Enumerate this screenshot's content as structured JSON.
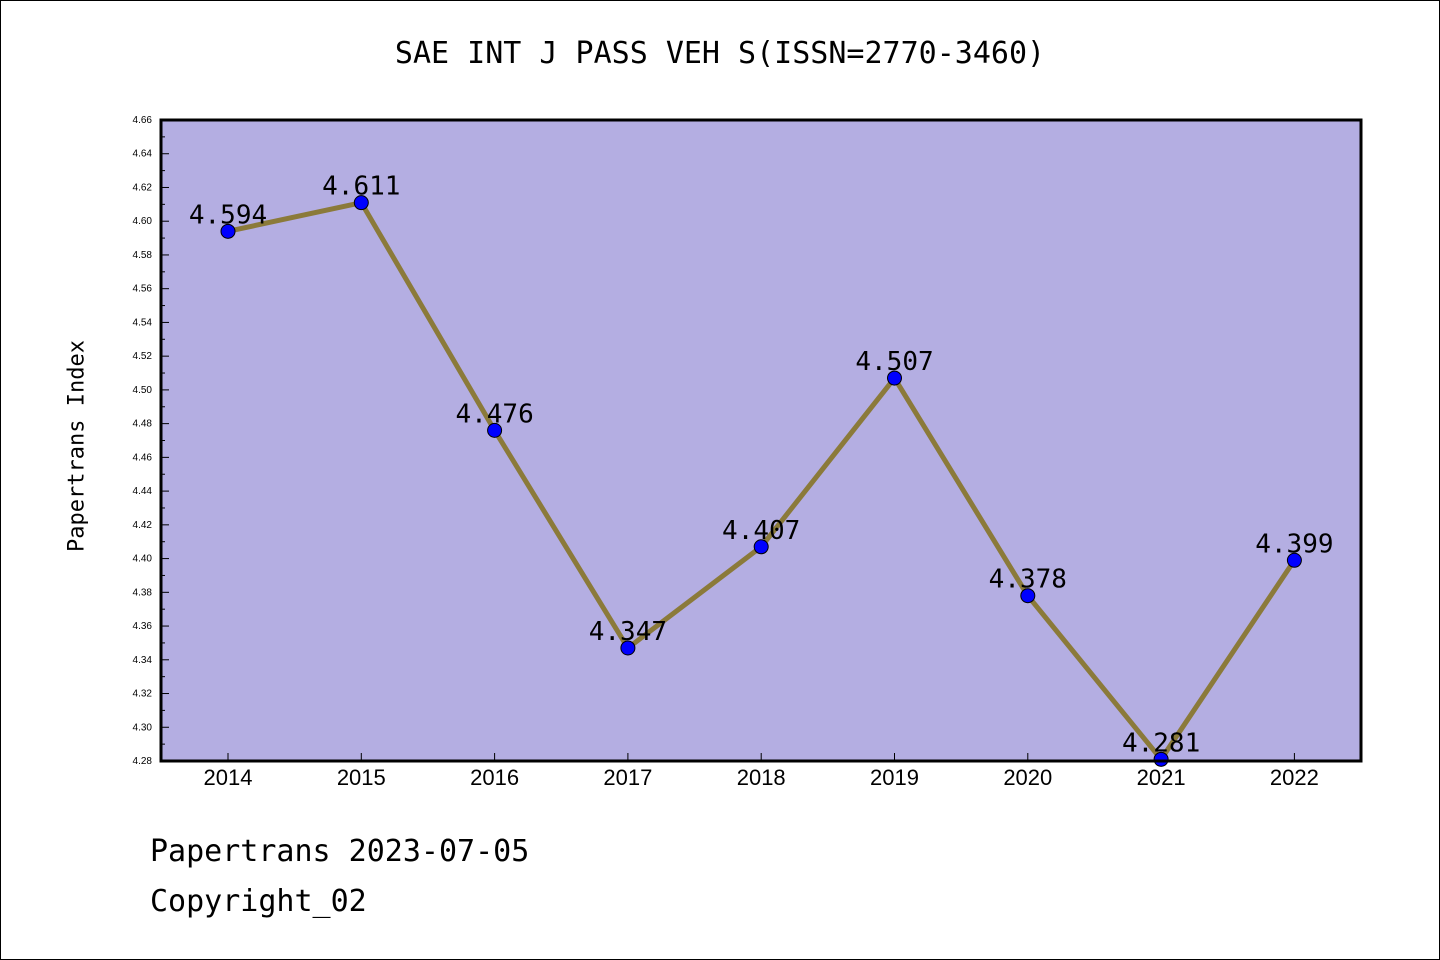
{
  "chart_data": {
    "type": "line",
    "title": "SAE INT J PASS VEH S(ISSN=2770-3460)",
    "xlabel": "",
    "ylabel": "Papertrans Index",
    "categories": [
      "2014",
      "2015",
      "2016",
      "2017",
      "2018",
      "2019",
      "2020",
      "2021",
      "2022"
    ],
    "series": [
      {
        "values": [
          4.594,
          4.611,
          4.476,
          4.347,
          4.407,
          4.507,
          4.378,
          4.281,
          4.399
        ],
        "labels": [
          "4.594",
          "4.611",
          "4.476",
          "4.347",
          "4.407",
          "4.507",
          "4.378",
          "4.281",
          "4.399"
        ]
      }
    ],
    "ylim": [
      4.28,
      4.66
    ],
    "yticks": [
      "4.28",
      "4.30",
      "4.32",
      "4.34",
      "4.36",
      "4.38",
      "4.40",
      "4.42",
      "4.44",
      "4.46",
      "4.48",
      "4.50",
      "4.52",
      "4.54",
      "4.56",
      "4.58",
      "4.60",
      "4.62",
      "4.64",
      "4.66"
    ],
    "grid": false,
    "colors": {
      "plot_background": "#b4aee2",
      "line": "#8b7a3a",
      "marker": "#0000ff"
    }
  },
  "footer": {
    "line1": "Papertrans 2023-07-05",
    "line2": "Copyright_02"
  }
}
